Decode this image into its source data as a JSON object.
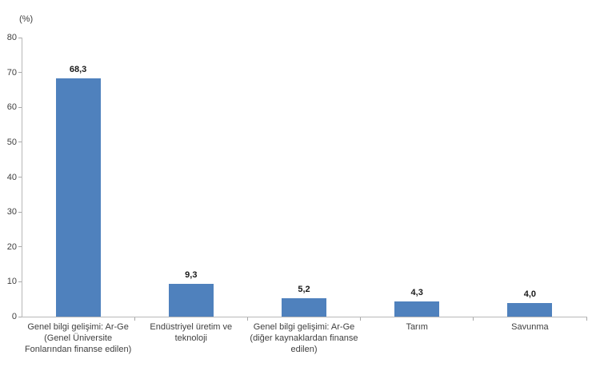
{
  "chart_data": {
    "type": "bar",
    "title": "",
    "unit_label": "(%)",
    "categories": [
      "Genel bilgi gelişimi:  Ar-Ge (Genel Üniversite Fonlarından finanse edilen)",
      "Endüstriyel üretim ve teknoloji",
      "Genel bilgi gelişimi: Ar-Ge (diğer kaynaklardan finanse edilen)",
      "Tarım",
      "Savunma"
    ],
    "values": [
      68.3,
      9.3,
      5.2,
      4.3,
      4.0
    ],
    "value_labels": [
      "68,3",
      "9,3",
      "5,2",
      "4,3",
      "4,0"
    ],
    "ylim": [
      0,
      80
    ],
    "yticks": [
      0,
      10,
      20,
      30,
      40,
      50,
      60,
      70,
      80
    ],
    "xlabel": "",
    "ylabel": "(%)",
    "grid": false,
    "legend": false,
    "bar_color": "#4f81bd",
    "axis_color": "#b8b8b8",
    "text_color": "#3f3f3f"
  }
}
